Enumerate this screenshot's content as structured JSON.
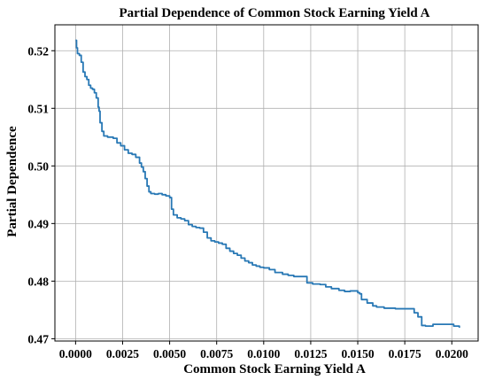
{
  "chart_data": {
    "type": "line",
    "title": "Partial Dependence of Common Stock Earning Yield A",
    "xlabel": "Common Stock Earning Yield A",
    "ylabel": "Partial Dependence",
    "xlim": [
      -0.0011,
      0.0214
    ],
    "ylim": [
      0.4696,
      0.5245
    ],
    "x_ticks": [
      0.0,
      0.0025,
      0.005,
      0.0075,
      0.01,
      0.0125,
      0.015,
      0.0175,
      0.02
    ],
    "x_tick_labels": [
      "0.0000",
      "0.0025",
      "0.0050",
      "0.0075",
      "0.0100",
      "0.0125",
      "0.0150",
      "0.0175",
      "0.0200"
    ],
    "y_ticks": [
      0.47,
      0.48,
      0.49,
      0.5,
      0.51,
      0.52
    ],
    "y_tick_labels": [
      "0.47",
      "0.48",
      "0.49",
      "0.50",
      "0.51",
      "0.52"
    ],
    "grid": true,
    "line_color": "#2878b5",
    "series": [
      {
        "x": [
          0.0,
          5e-05,
          0.0001,
          0.0002,
          0.0003,
          0.0004,
          0.0005,
          0.0006,
          0.0007,
          0.0008,
          0.0009,
          0.001,
          0.0011,
          0.0012,
          0.00125,
          0.0013,
          0.0014,
          0.0015,
          0.0017,
          0.002,
          0.0022,
          0.0024,
          0.0026,
          0.0028,
          0.003,
          0.0032,
          0.0034,
          0.0035,
          0.0036,
          0.0037,
          0.0038,
          0.0039,
          0.004,
          0.0042,
          0.0044,
          0.0046,
          0.0048,
          0.005,
          0.0051,
          0.0052,
          0.0054,
          0.0056,
          0.0058,
          0.006,
          0.0062,
          0.0064,
          0.0066,
          0.0068,
          0.007,
          0.0072,
          0.0074,
          0.0076,
          0.0078,
          0.008,
          0.0082,
          0.0084,
          0.0086,
          0.0088,
          0.009,
          0.0092,
          0.0094,
          0.0096,
          0.0098,
          0.01,
          0.0103,
          0.0106,
          0.011,
          0.0113,
          0.0116,
          0.012,
          0.0123,
          0.0126,
          0.013,
          0.0133,
          0.0136,
          0.014,
          0.0143,
          0.0146,
          0.015,
          0.0151,
          0.0152,
          0.0155,
          0.0158,
          0.016,
          0.0164,
          0.0168,
          0.017,
          0.0174,
          0.0178,
          0.018,
          0.0182,
          0.0184,
          0.0186,
          0.0188,
          0.019,
          0.0194,
          0.0198,
          0.0201,
          0.0204
        ],
        "y": [
          0.5218,
          0.5205,
          0.5195,
          0.5192,
          0.518,
          0.5163,
          0.5155,
          0.515,
          0.514,
          0.5135,
          0.5133,
          0.5127,
          0.5118,
          0.5102,
          0.5095,
          0.5075,
          0.506,
          0.5052,
          0.505,
          0.5048,
          0.504,
          0.5035,
          0.5028,
          0.5022,
          0.502,
          0.5015,
          0.5005,
          0.4998,
          0.499,
          0.4978,
          0.4965,
          0.4955,
          0.4952,
          0.4951,
          0.4952,
          0.495,
          0.4948,
          0.4945,
          0.4925,
          0.4915,
          0.491,
          0.4908,
          0.4905,
          0.4898,
          0.4895,
          0.4893,
          0.4892,
          0.4885,
          0.4875,
          0.487,
          0.4868,
          0.4866,
          0.4864,
          0.4857,
          0.4852,
          0.4848,
          0.4845,
          0.484,
          0.4835,
          0.4832,
          0.4828,
          0.4826,
          0.4824,
          0.4823,
          0.482,
          0.4815,
          0.4812,
          0.481,
          0.4808,
          0.4808,
          0.4797,
          0.4795,
          0.4794,
          0.479,
          0.4787,
          0.4784,
          0.4782,
          0.4783,
          0.478,
          0.4778,
          0.4768,
          0.4762,
          0.4757,
          0.4755,
          0.4753,
          0.4753,
          0.4752,
          0.4752,
          0.4752,
          0.4745,
          0.4738,
          0.4723,
          0.4722,
          0.4722,
          0.4725,
          0.4725,
          0.4725,
          0.4722,
          0.4719
        ]
      }
    ]
  }
}
